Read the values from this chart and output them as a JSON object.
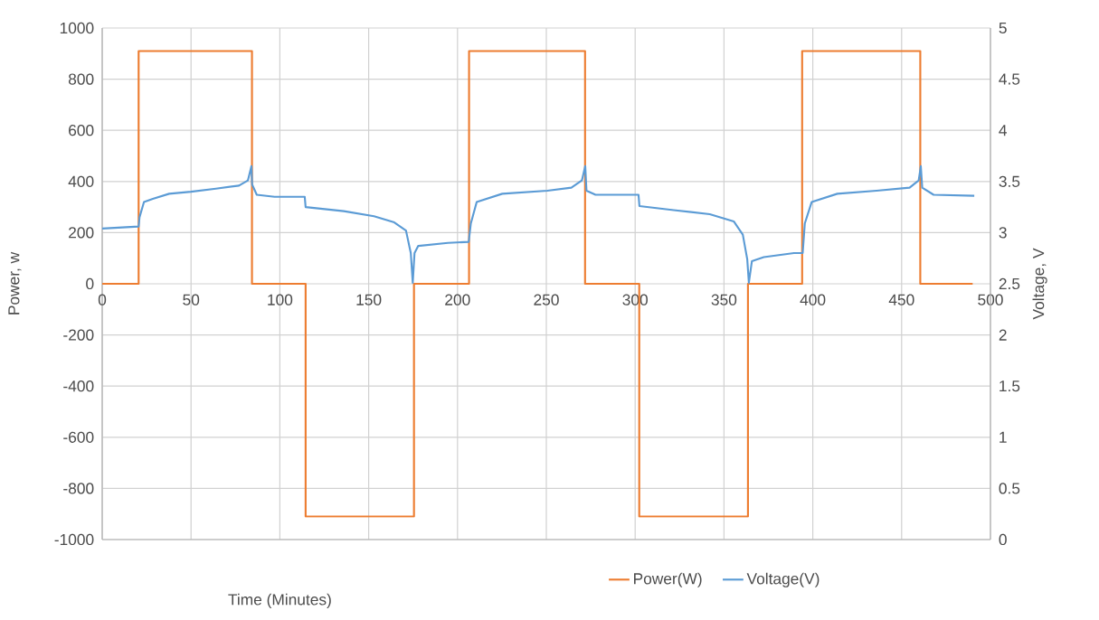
{
  "chart_data": {
    "type": "line",
    "xlabel": "Time (Minutes)",
    "ylabel": "Power, w",
    "y2label": "Voltage, V",
    "xlim": [
      0,
      500
    ],
    "xticks": [
      0,
      50,
      100,
      150,
      200,
      250,
      300,
      350,
      400,
      450,
      500
    ],
    "ylim": [
      -1000,
      1000
    ],
    "yticks": [
      -1000,
      -800,
      -600,
      -400,
      -200,
      0,
      200,
      400,
      600,
      800,
      1000
    ],
    "y2lim": [
      0,
      5
    ],
    "y2ticks": [
      0,
      0.5,
      1,
      1.5,
      2,
      2.5,
      3,
      3.5,
      4,
      4.5,
      5
    ],
    "grid": true,
    "legend": "bottom",
    "marker": "none",
    "line_style": "solid",
    "series": [
      {
        "name": "Power(W)",
        "type": "step",
        "color": "#ed7d31",
        "x": [
          0,
          20.5,
          84.3,
          114.5,
          175.5,
          206.5,
          271.8,
          302.3,
          363.5,
          394,
          460.5,
          490
        ],
        "values": [
          0,
          910,
          0,
          -910,
          0,
          910,
          0,
          -910,
          0,
          910,
          0,
          0
        ]
      },
      {
        "name": "Voltage(V)",
        "axis": "y2",
        "color": "#5b9bd5",
        "x": [
          0,
          20.5,
          21,
          23.5,
          28.5,
          37.7,
          50,
          64,
          77,
          82,
          84,
          84.4,
          87,
          97,
          114,
          114.5,
          136,
          153,
          164.4,
          171,
          173.7,
          174.8,
          175.8,
          177.9,
          194.6,
          206.3,
          207.5,
          210.8,
          225.2,
          250.6,
          264.1,
          270,
          271.9,
          272.6,
          277.7,
          301.9,
          302.4,
          321.7,
          342,
          355.5,
          360.6,
          363.1,
          364,
          365.7,
          372.4,
          389.4,
          394.3,
          395.5,
          399.4,
          413.8,
          435.9,
          454.5,
          459.6,
          460.8,
          461.6,
          468,
          490.9
        ],
        "values": [
          3.04,
          3.06,
          3.15,
          3.3,
          3.33,
          3.38,
          3.4,
          3.43,
          3.46,
          3.51,
          3.65,
          3.47,
          3.37,
          3.35,
          3.35,
          3.25,
          3.21,
          3.16,
          3.1,
          3.02,
          2.8,
          2.51,
          2.8,
          2.87,
          2.9,
          2.91,
          3.09,
          3.3,
          3.38,
          3.41,
          3.44,
          3.51,
          3.65,
          3.41,
          3.37,
          3.37,
          3.26,
          3.22,
          3.18,
          3.11,
          2.98,
          2.74,
          2.51,
          2.72,
          2.76,
          2.8,
          2.8,
          3.09,
          3.3,
          3.38,
          3.41,
          3.44,
          3.51,
          3.65,
          3.44,
          3.37,
          3.36
        ]
      }
    ]
  }
}
